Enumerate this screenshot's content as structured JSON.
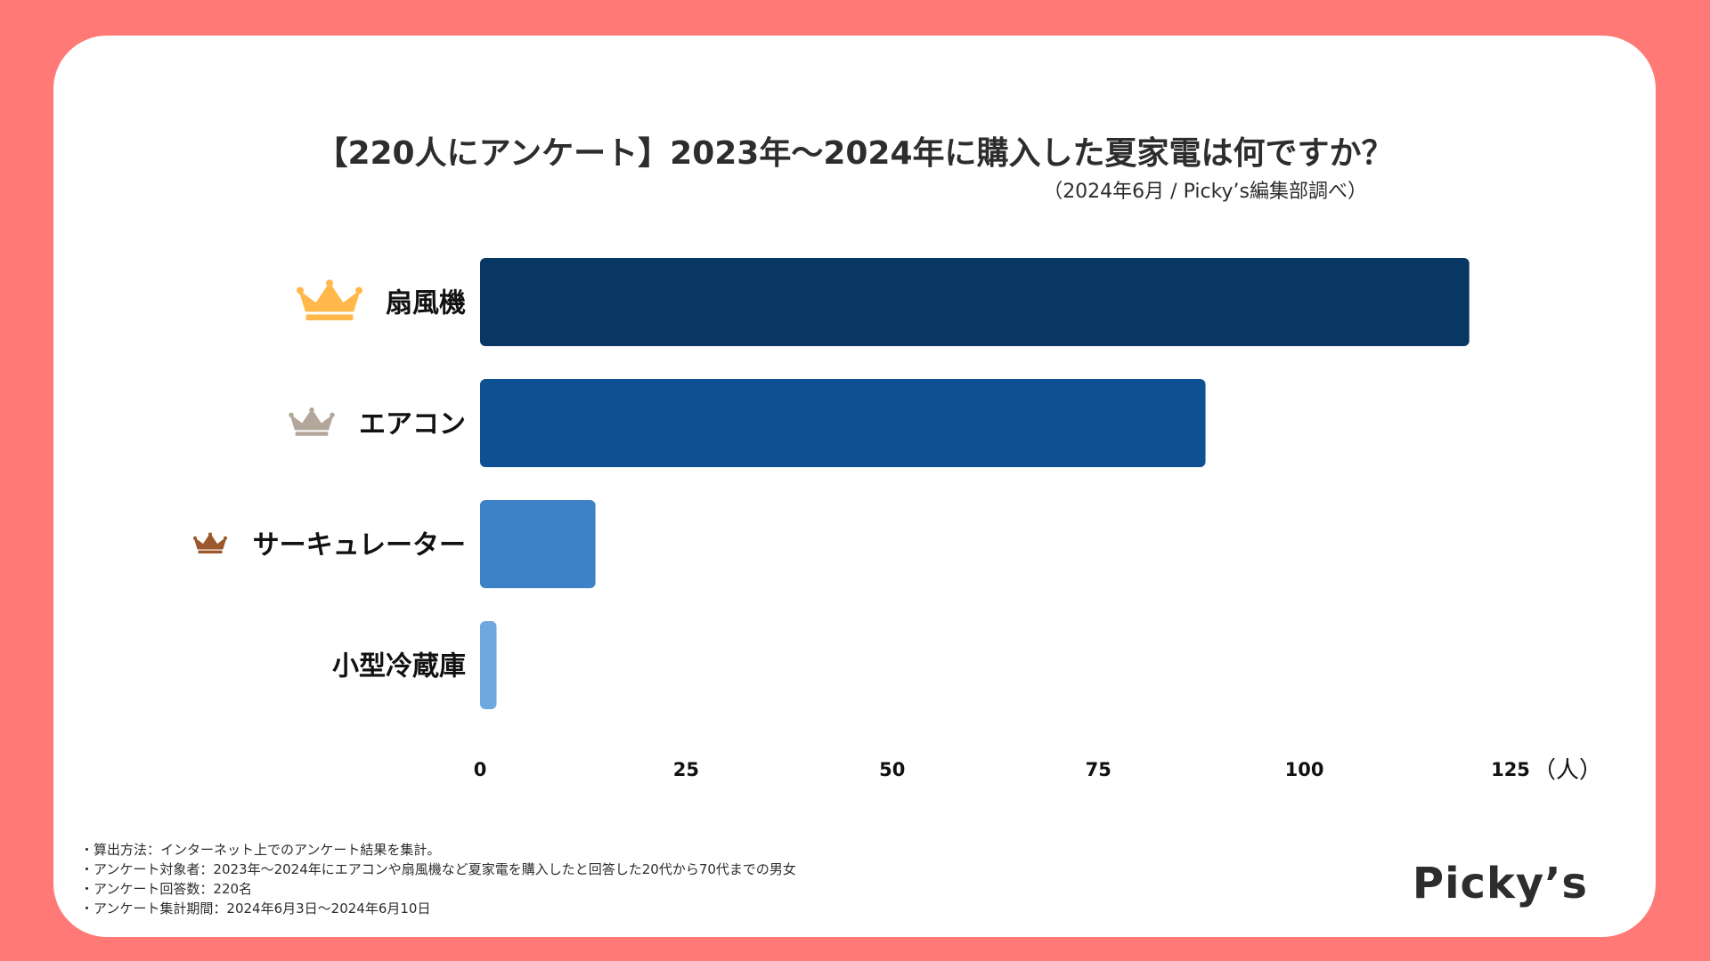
{
  "chart_data": {
    "type": "bar",
    "orientation": "horizontal",
    "title": "【220人にアンケート】2023年〜2024年に購入した夏家電は何ですか？",
    "subtitle": "（2024年6月 / Picky’s編集部調べ）",
    "categories": [
      "扇風機",
      "エアコン",
      "サーキュレーター",
      "小型冷蔵庫"
    ],
    "values": [
      120,
      88,
      14,
      2
    ],
    "ranks": [
      "gold",
      "silver",
      "bronze",
      ""
    ],
    "x_ticks": [
      "0",
      "25",
      "50",
      "75",
      "100",
      "125"
    ],
    "x_tick_values": [
      0,
      25,
      50,
      75,
      100,
      125
    ],
    "xlim": [
      0,
      125
    ],
    "x_unit": "（人）",
    "grid": false,
    "legend": "none"
  },
  "colors": {
    "background": "#ff7a76",
    "card": "#ffffff",
    "bars": [
      "#093763",
      "#0e5193",
      "#3d82c6",
      "#6ea8de"
    ],
    "crown_gold": "#ffb849",
    "crown_silver": "#b3a79b",
    "crown_bronze": "#9c582d",
    "text": "#2d2d2d"
  },
  "notes": [
    "・算出方法：インターネット上でのアンケート結果を集計。",
    "・アンケート対象者：2023年〜2024年にエアコンや扇風機など夏家電を購入したと回答した20代から70代までの男女",
    "・アンケート回答数：220名",
    "・アンケート集計期間：2024年6月3日〜2024年6月10日"
  ],
  "logo": "Picky’s"
}
